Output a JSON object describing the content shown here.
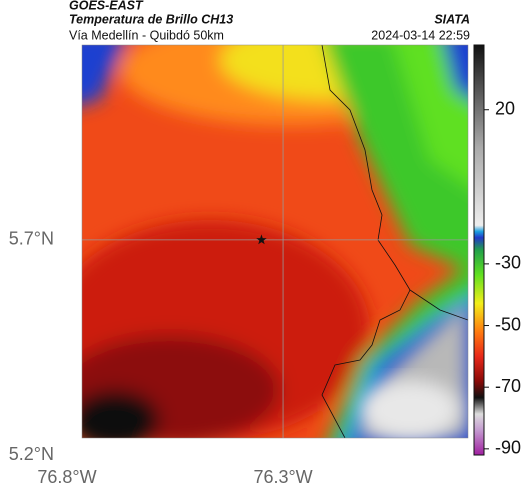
{
  "header": {
    "source": "GOES-EAST",
    "title": "Temperatura de Brillo CH13",
    "subtitle": "Vía Medellín - Quibdó 50km",
    "brand": "SIATA",
    "datetime": "2024-03-14 22:59"
  },
  "map": {
    "xlim": [
      -76.8,
      -75.872
    ],
    "ylim": [
      5.2,
      6.153
    ],
    "xticks": [
      {
        "value": -76.8,
        "label": "76.8°W"
      },
      {
        "value": -76.3,
        "label": "76.3°W"
      }
    ],
    "yticks": [
      {
        "value": 5.2,
        "label": "5.2°N"
      },
      {
        "value": 5.7,
        "label": "5.7°N"
      }
    ],
    "grid": true,
    "marker": {
      "lon": -76.35,
      "lat": 5.7
    }
  },
  "colorbar": {
    "lim": [
      -92,
      41
    ],
    "ticks": [
      20,
      -30,
      -50,
      -70,
      -90
    ]
  }
}
